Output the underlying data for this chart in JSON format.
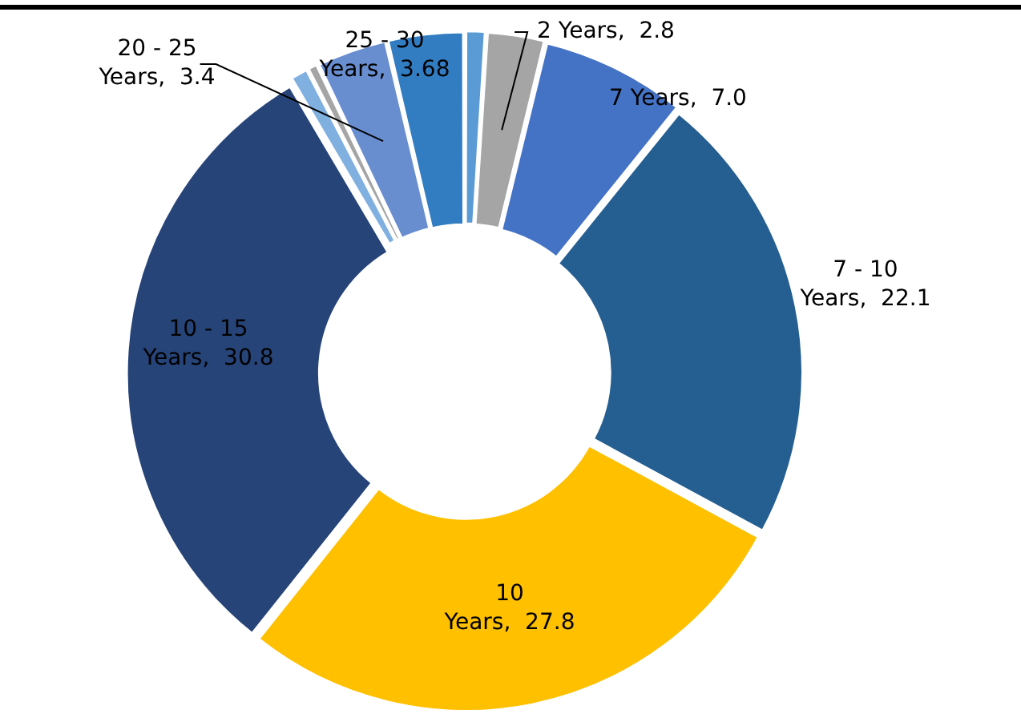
{
  "chart_data": {
    "type": "donut",
    "categories": [
      null,
      "2 Years",
      "7 Years",
      "7 - 10 Years",
      "10 Years",
      "10 - 15 Years",
      null,
      null,
      "20 - 25 Years",
      "25 - 30 Years"
    ],
    "values": [
      1.0,
      2.8,
      7.0,
      22.1,
      27.8,
      30.8,
      0.9,
      0.52,
      3.4,
      3.68
    ],
    "value_labels": [
      null,
      "2.8",
      "7.0",
      "22.1",
      "27.8",
      "30.8",
      null,
      null,
      "3.4",
      "3.68"
    ],
    "colors": [
      "#5b9bd5",
      "#a5a5a5",
      "#4472c4",
      "#255e91",
      "#ffc000",
      "#264478",
      "#7fb0e0",
      "#a5a5a5",
      "#698ed0",
      "#327dc2"
    ],
    "legend": false
  }
}
